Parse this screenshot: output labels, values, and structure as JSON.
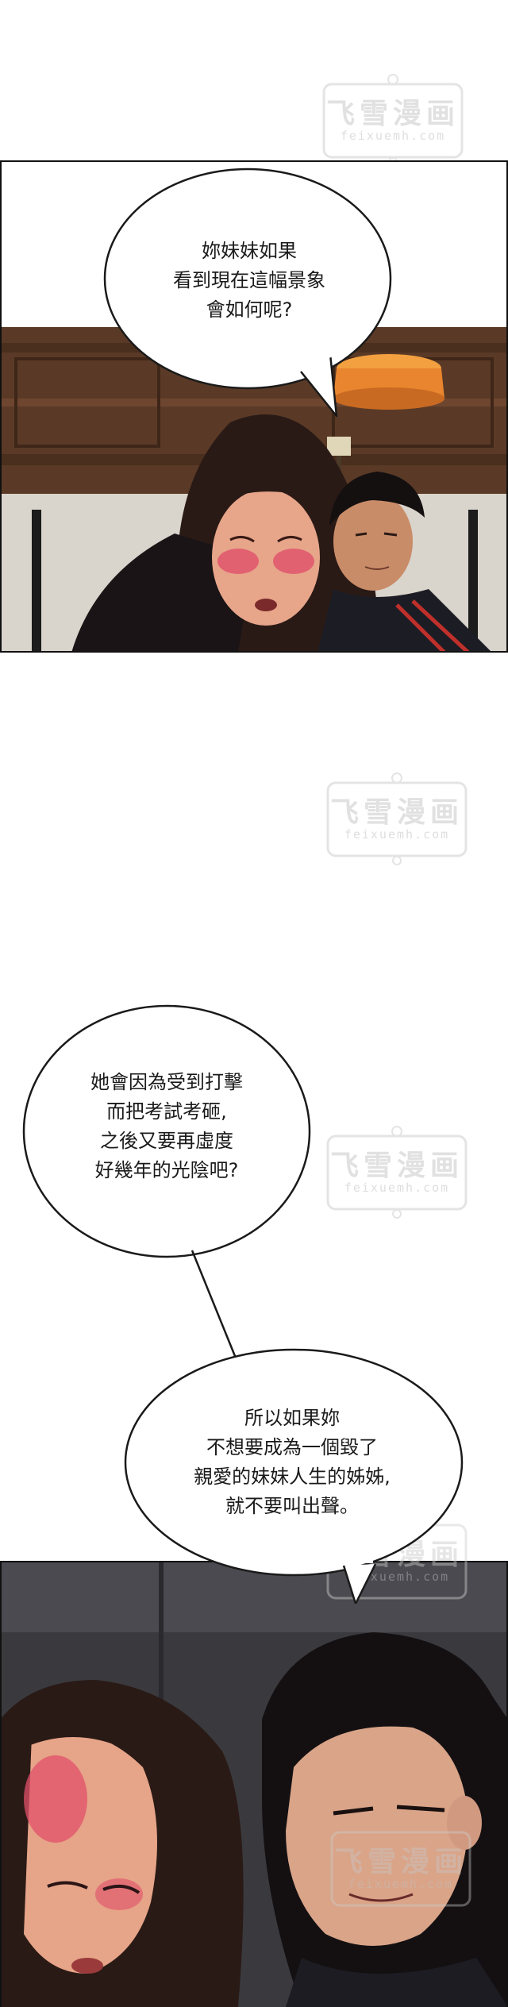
{
  "watermark": {
    "title": "飞雪漫画",
    "subtitle": "feixuemh.com"
  },
  "bubbles": [
    {
      "lines": [
        "妳妹妹如果",
        "看到現在這幅景象",
        "會如何呢?"
      ]
    },
    {
      "lines": [
        "她會因為受到打擊",
        "而把考試考砸,",
        "之後又要再虛度",
        "好幾年的光陰吧?"
      ]
    },
    {
      "lines": [
        "所以如果妳",
        "不想要成為一個毀了",
        "親愛的妹妹人生的姊姊,",
        "就不要叫出聲。"
      ]
    }
  ],
  "colors": {
    "panel_border": "#111111",
    "wood": "#5a3a26",
    "lamp": "#e8852e",
    "skin_blush": "#e0506a",
    "hair": "#2a1a16",
    "wall": "#3a3a3e"
  }
}
